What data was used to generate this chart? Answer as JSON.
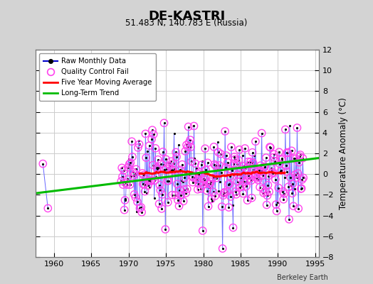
{
  "title": "DE-KASTRI",
  "subtitle": "51.483 N, 140.783 E (Russia)",
  "ylabel": "Temperature Anomaly (°C)",
  "credit": "Berkeley Earth",
  "xlim": [
    1957.5,
    1995.5
  ],
  "ylim": [
    -8,
    12
  ],
  "yticks": [
    -8,
    -6,
    -4,
    -2,
    0,
    2,
    4,
    6,
    8,
    10,
    12
  ],
  "xticks": [
    1960,
    1965,
    1970,
    1975,
    1980,
    1985,
    1990,
    1995
  ],
  "bg_color": "#d3d3d3",
  "plot_bg": "#ffffff",
  "trend_x": [
    1957.5,
    1995.5
  ],
  "trend_y": [
    -1.85,
    1.55
  ],
  "seed": 15,
  "noise_scale": 2.0,
  "early_years": [
    1958.5,
    1959.17
  ],
  "early_vals": [
    1.0,
    -3.3
  ],
  "early_qc": [
    true,
    true
  ]
}
